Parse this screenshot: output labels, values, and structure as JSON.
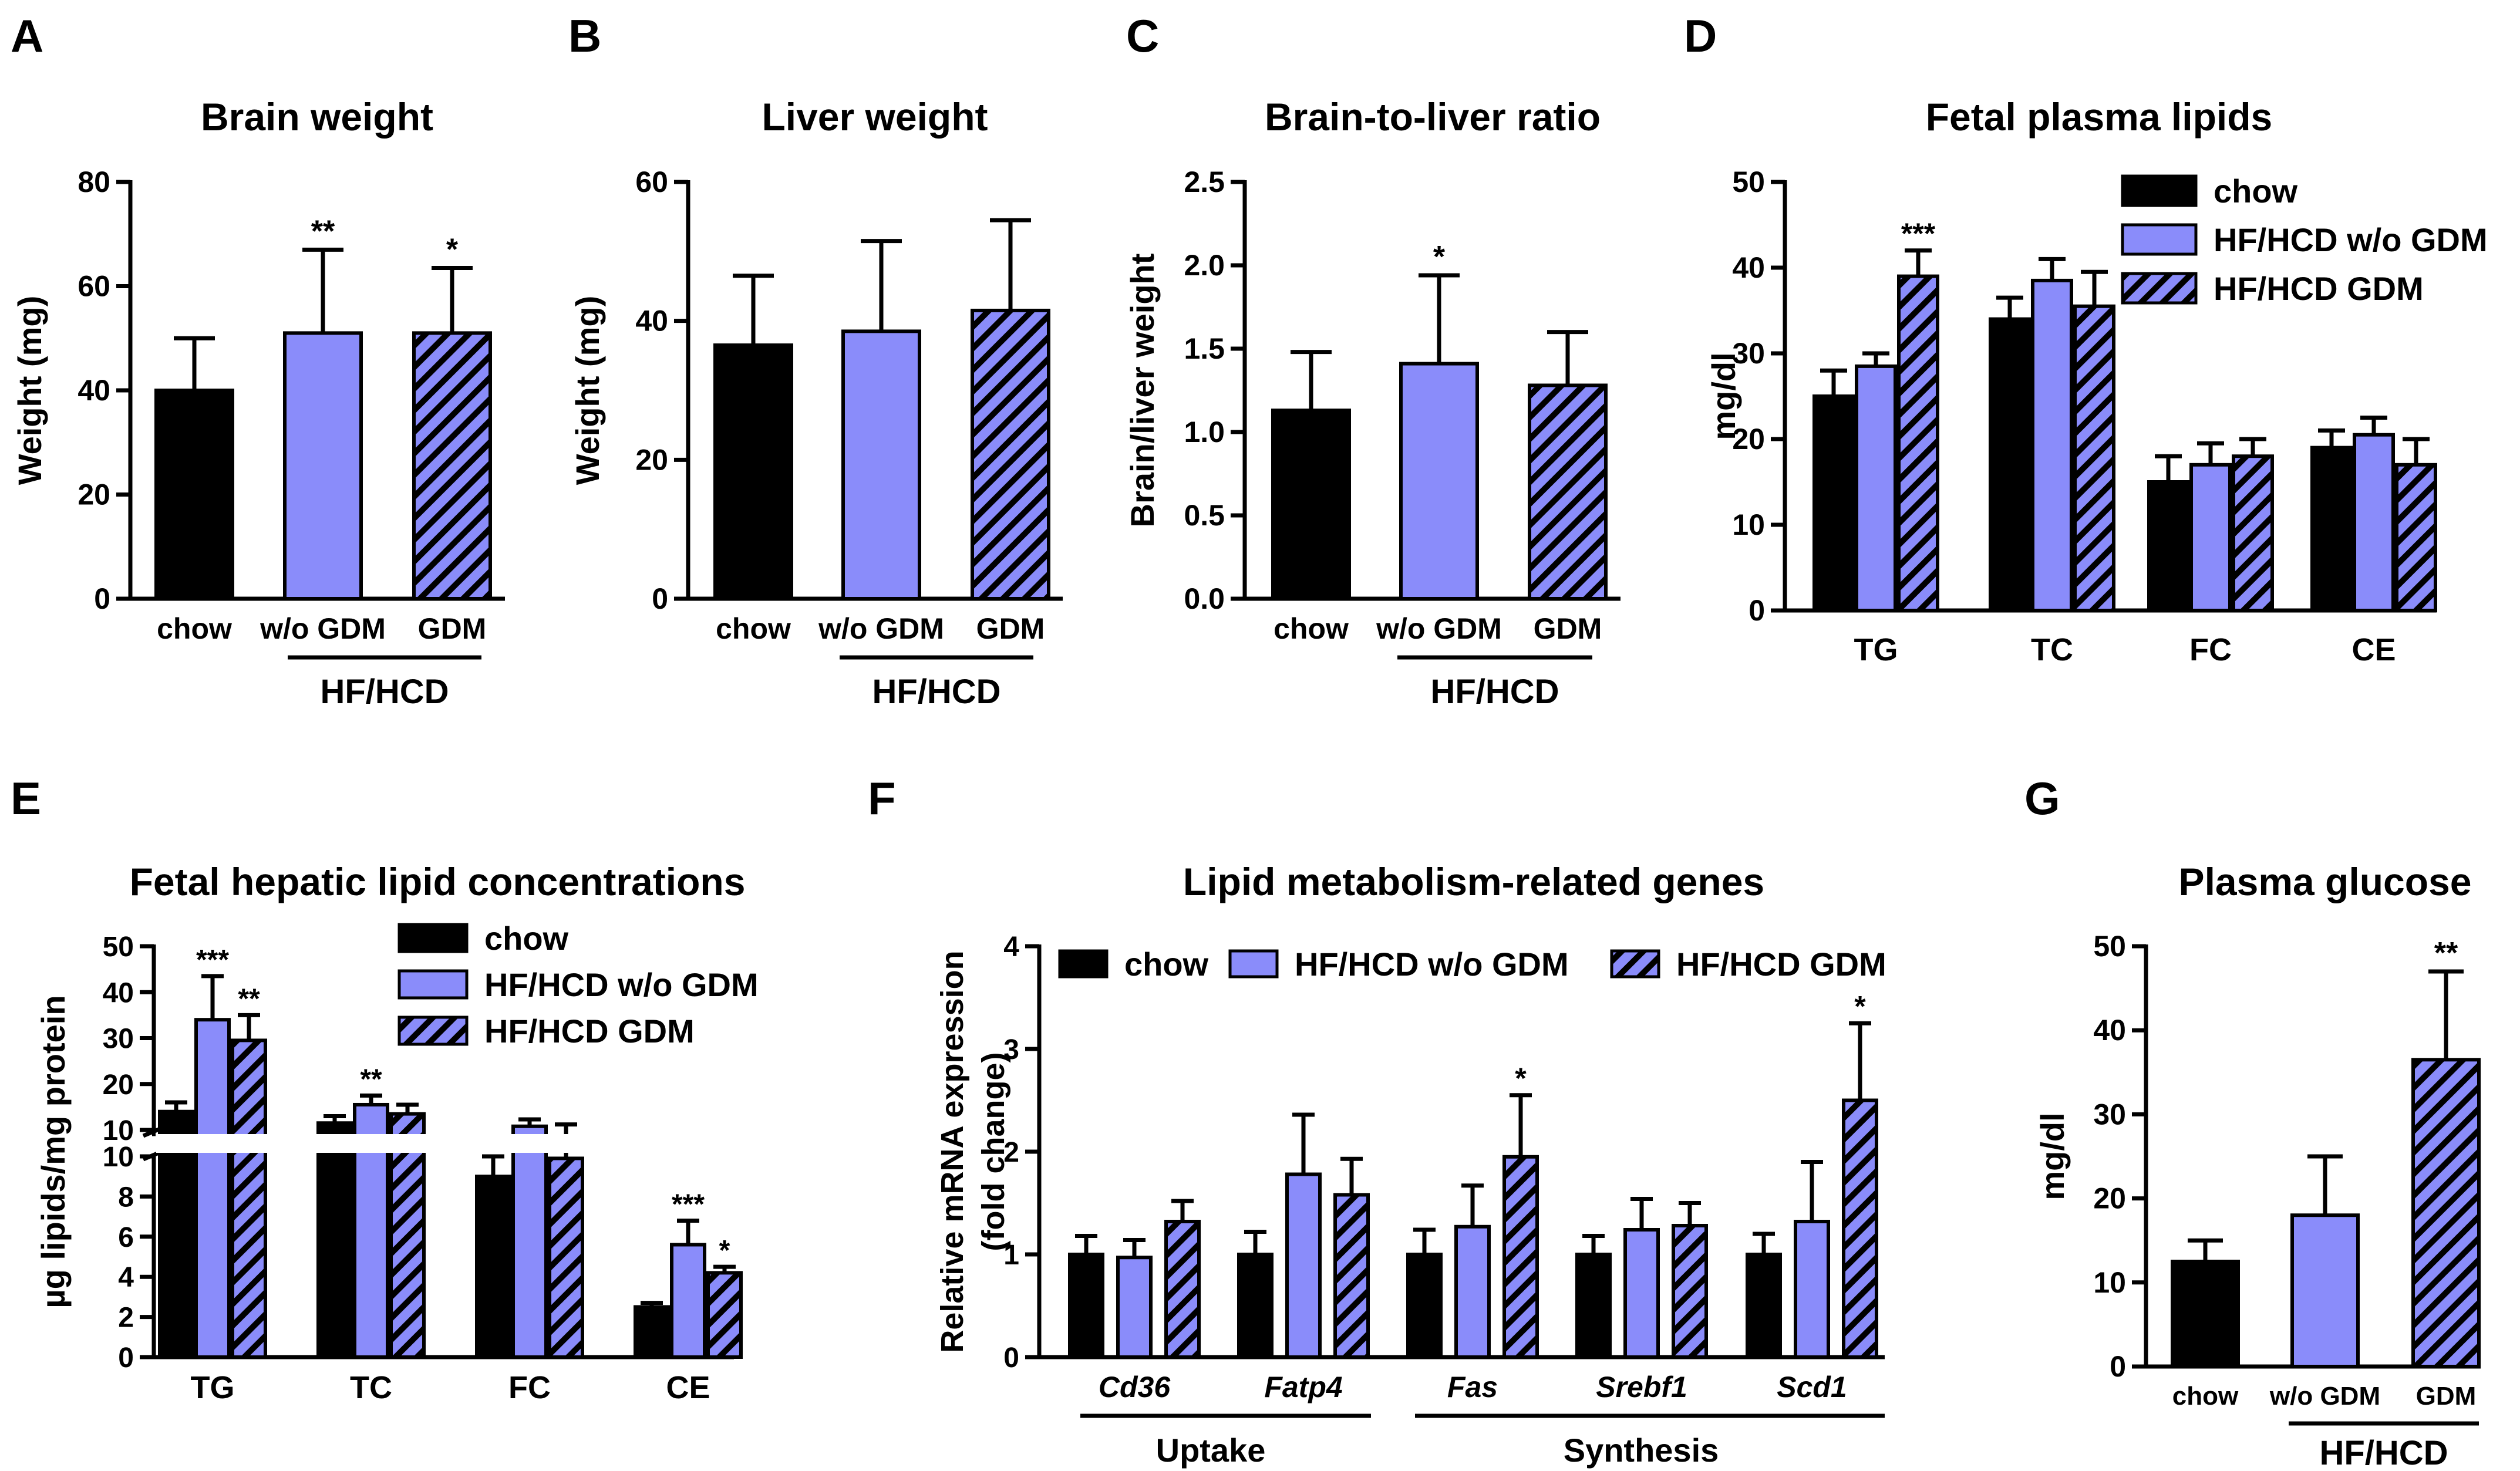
{
  "colors": {
    "chow": "#000000",
    "hf": "#8a8cfa",
    "hatch": "#000000"
  },
  "legend": {
    "chow": "chow",
    "hf_wo": "HF/HCD w/o GDM",
    "hf_gdm": "HF/HCD GDM"
  },
  "chart_data": [
    {
      "id": "A",
      "panel_label": "A",
      "type": "bar",
      "title": "Brain weight",
      "ylabel": "Weight (mg)",
      "ylim": [
        0,
        80
      ],
      "yticks": [
        "0",
        "20",
        "40",
        "60",
        "80"
      ],
      "categories": [
        "chow",
        "w/o GDM",
        "GDM"
      ],
      "group_label": "HF/HCD",
      "values": [
        40,
        51,
        51
      ],
      "errors": [
        10,
        16,
        12.5
      ],
      "sig": [
        "",
        "**",
        "*"
      ]
    },
    {
      "id": "B",
      "panel_label": "B",
      "type": "bar",
      "title": "Liver weight",
      "ylabel": "Weight (mg)",
      "ylim": [
        0,
        60
      ],
      "yticks": [
        "0",
        "20",
        "40",
        "60"
      ],
      "categories": [
        "chow",
        "w/o GDM",
        "GDM"
      ],
      "group_label": "HF/HCD",
      "values": [
        36.5,
        38.5,
        41.5
      ],
      "errors": [
        10,
        13,
        13
      ],
      "sig": [
        "",
        "",
        ""
      ]
    },
    {
      "id": "C",
      "panel_label": "C",
      "type": "bar",
      "title": "Brain-to-liver ratio",
      "ylabel": "Brain/liver weight",
      "ylim": [
        0,
        2.5
      ],
      "yticks": [
        "0.0",
        "0.5",
        "1.0",
        "1.5",
        "2.0",
        "2.5"
      ],
      "categories": [
        "chow",
        "w/o GDM",
        "GDM"
      ],
      "group_label": "HF/HCD",
      "values": [
        1.13,
        1.41,
        1.28
      ],
      "errors": [
        0.35,
        0.53,
        0.32
      ],
      "sig": [
        "",
        "*",
        ""
      ]
    },
    {
      "id": "D",
      "panel_label": "D",
      "type": "bar",
      "title": "Fetal plasma lipids",
      "ylabel": "mg/dl",
      "ylim": [
        0,
        50
      ],
      "yticks": [
        "0",
        "10",
        "20",
        "30",
        "40",
        "50"
      ],
      "categories": [
        "TG",
        "TC",
        "FC",
        "CE"
      ],
      "series": [
        {
          "name": "chow",
          "values": [
            25,
            34,
            15,
            19
          ],
          "errors": [
            3,
            2.5,
            3,
            2
          ],
          "sig": [
            "",
            "",
            "",
            ""
          ]
        },
        {
          "name": "HF/HCD w/o GDM",
          "values": [
            28.5,
            38.5,
            17,
            20.5
          ],
          "errors": [
            1.5,
            2.5,
            2.5,
            2
          ],
          "sig": [
            "",
            "",
            "",
            ""
          ]
        },
        {
          "name": "HF/HCD GDM",
          "values": [
            39,
            35.5,
            18,
            17
          ],
          "errors": [
            3,
            4,
            2,
            3
          ],
          "sig": [
            "***",
            "",
            "",
            ""
          ]
        }
      ]
    },
    {
      "id": "E",
      "panel_label": "E",
      "type": "bar",
      "title": "Fetal hepatic lipid concentrations",
      "ylabel": "µg lipids/mg protein",
      "ylim": [
        0,
        50
      ],
      "axis_break": [
        10,
        10
      ],
      "yticks_lower": [
        "0",
        "2",
        "4",
        "6",
        "8",
        "10"
      ],
      "yticks_upper": [
        "10",
        "20",
        "30",
        "40",
        "50"
      ],
      "categories": [
        "TG",
        "TC",
        "FC",
        "CE"
      ],
      "series": [
        {
          "name": "chow",
          "values": [
            14,
            11.5,
            9,
            2.5
          ],
          "errors": [
            2,
            1.5,
            1,
            0.2
          ],
          "sig": [
            "",
            "",
            "",
            ""
          ]
        },
        {
          "name": "HF/HCD w/o GDM",
          "values": [
            34,
            15.5,
            10.8,
            5.6
          ],
          "errors": [
            9.5,
            2,
            1.5,
            1.2
          ],
          "sig": [
            "***",
            "**",
            "",
            "***"
          ]
        },
        {
          "name": "HF/HCD GDM",
          "values": [
            29.5,
            13.5,
            9.9,
            4.2
          ],
          "errors": [
            5.5,
            2,
            1.3,
            0.3
          ],
          "sig": [
            "**",
            "",
            "",
            "*"
          ]
        }
      ]
    },
    {
      "id": "F",
      "panel_label": "F",
      "type": "bar",
      "title": "Lipid metabolism-related genes",
      "ylabel_lines": [
        "Relative mRNA expression",
        "(fold change)"
      ],
      "ylim": [
        0,
        4
      ],
      "yticks": [
        "0",
        "1",
        "2",
        "3",
        "4"
      ],
      "categories": [
        "Cd36",
        "Fatp4",
        "Fas",
        "Srebf1",
        "Scd1"
      ],
      "group_labels": [
        "Uptake",
        "Synthesis"
      ],
      "series": [
        {
          "name": "chow",
          "values": [
            1.0,
            1.0,
            1.0,
            1.0,
            1.0
          ],
          "errors": [
            0.18,
            0.22,
            0.24,
            0.18,
            0.2
          ],
          "sig": [
            "",
            "",
            "",
            "",
            ""
          ]
        },
        {
          "name": "HF/HCD w/o GDM",
          "values": [
            0.97,
            1.78,
            1.27,
            1.24,
            1.32
          ],
          "errors": [
            0.17,
            0.58,
            0.4,
            0.3,
            0.58
          ],
          "sig": [
            "",
            "",
            "",
            "",
            ""
          ]
        },
        {
          "name": "HF/HCD GDM",
          "values": [
            1.32,
            1.58,
            1.95,
            1.28,
            2.5
          ],
          "errors": [
            0.2,
            0.35,
            0.6,
            0.22,
            0.75
          ],
          "sig": [
            "",
            "",
            "*",
            "",
            "*"
          ]
        }
      ]
    },
    {
      "id": "G",
      "panel_label": "G",
      "type": "bar",
      "title": "Plasma glucose",
      "ylabel": "mg/dl",
      "ylim": [
        0,
        50
      ],
      "yticks": [
        "0",
        "10",
        "20",
        "30",
        "40",
        "50"
      ],
      "categories": [
        "chow",
        "w/o GDM",
        "GDM"
      ],
      "group_label": "HF/HCD",
      "values": [
        12.5,
        18,
        36.5
      ],
      "errors": [
        2.5,
        7,
        10.5
      ],
      "sig": [
        "",
        "",
        "**"
      ]
    }
  ]
}
